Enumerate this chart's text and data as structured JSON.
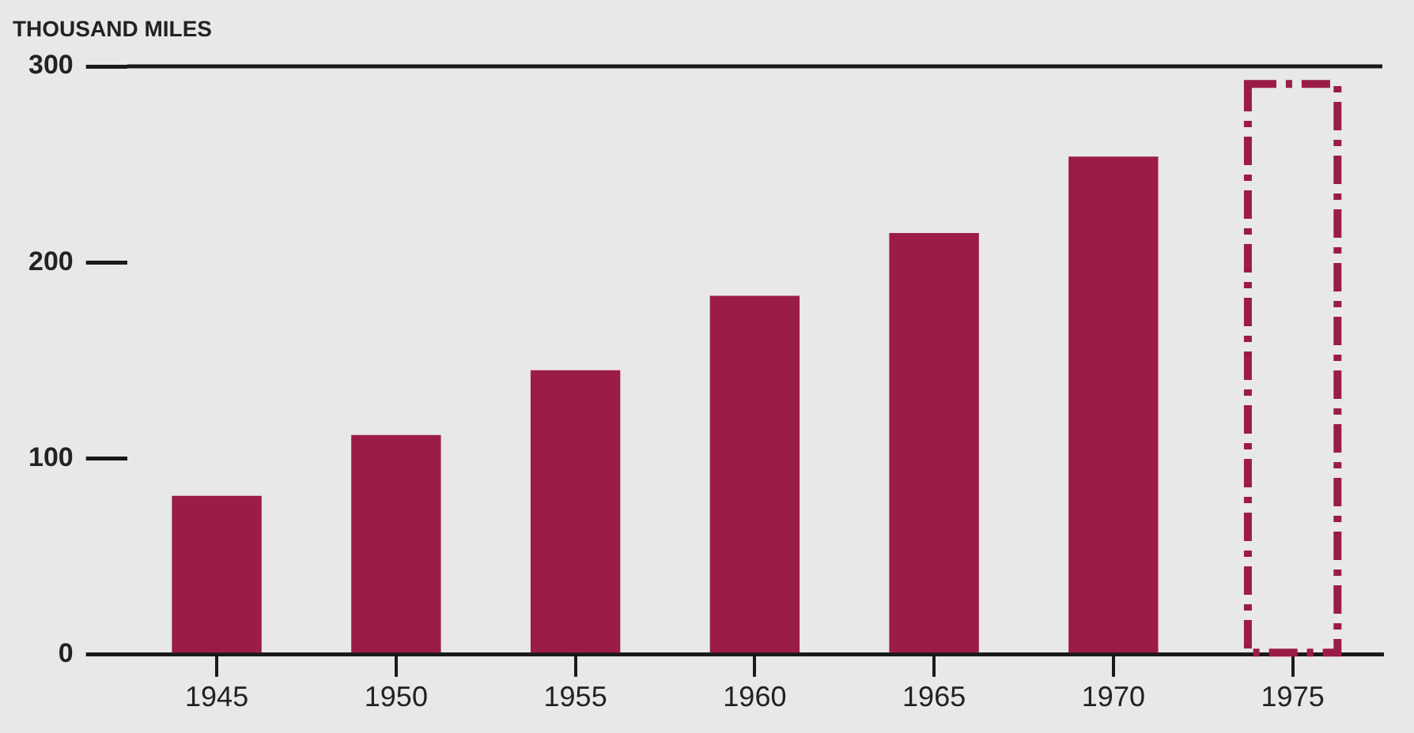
{
  "chart_data": {
    "type": "bar",
    "ylabel": "THOUSAND MILES",
    "categories": [
      "1945",
      "1950",
      "1955",
      "1960",
      "1965",
      "1970",
      "1975"
    ],
    "series": [
      {
        "color": "#9b1c45",
        "values": [
          81,
          112,
          145,
          183,
          215,
          254,
          null
        ]
      },
      {
        "color": "#9b1c45",
        "line_style": "dashed",
        "values": [
          null,
          null,
          null,
          null,
          null,
          null,
          291
        ]
      }
    ],
    "ylim": [
      0,
      300
    ],
    "yticks": [
      0,
      100,
      200,
      300
    ],
    "grid": false,
    "legend": false,
    "ref_lines": [
      {
        "axis": "y",
        "value": 300,
        "color": "#1a1a1a"
      }
    ]
  }
}
